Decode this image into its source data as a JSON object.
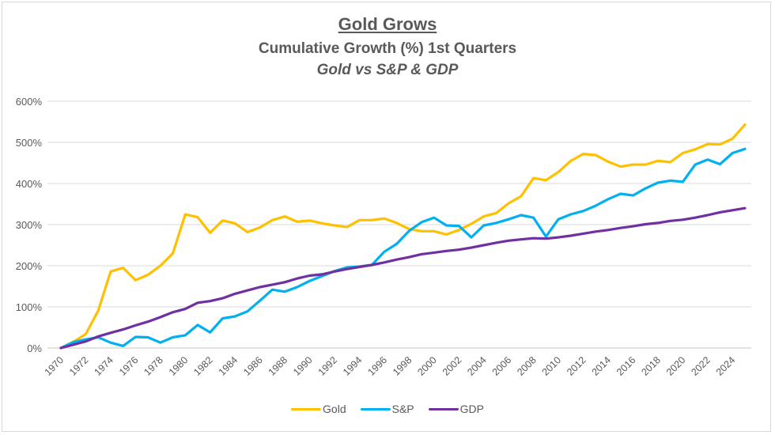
{
  "chart_data": {
    "type": "line",
    "title": "Gold Grows",
    "subtitle": "Cumulative Growth (%) 1st Quarters",
    "subtitle2": "Gold vs S&P & GDP",
    "xlabel": "",
    "ylabel": "",
    "ylim": [
      0,
      600
    ],
    "yticks": [
      "0%",
      "100%",
      "200%",
      "300%",
      "400%",
      "500%",
      "600%"
    ],
    "ytick_values": [
      0,
      100,
      200,
      300,
      400,
      500,
      600
    ],
    "x": [
      1970,
      1971,
      1972,
      1973,
      1974,
      1975,
      1976,
      1977,
      1978,
      1979,
      1980,
      1981,
      1982,
      1983,
      1984,
      1985,
      1986,
      1987,
      1988,
      1989,
      1990,
      1991,
      1992,
      1993,
      1994,
      1995,
      1996,
      1997,
      1998,
      1999,
      2000,
      2001,
      2002,
      2003,
      2004,
      2005,
      2006,
      2007,
      2008,
      2009,
      2010,
      2011,
      2012,
      2013,
      2014,
      2015,
      2016,
      2017,
      2018,
      2019,
      2020,
      2021,
      2022,
      2023,
      2024,
      2025
    ],
    "xtick_labels": [
      "1970",
      "1972",
      "1974",
      "1976",
      "1978",
      "1980",
      "1982",
      "1984",
      "1986",
      "1988",
      "1990",
      "1992",
      "1994",
      "1996",
      "1998",
      "2000",
      "2002",
      "2004",
      "2006",
      "2008",
      "2010",
      "2012",
      "2014",
      "2016",
      "2018",
      "2020",
      "2022",
      "2024"
    ],
    "grid": true,
    "legend_position": "bottom",
    "series": [
      {
        "name": "Gold",
        "color": "#FFC000",
        "values": [
          0,
          15,
          34,
          91,
          186,
          195,
          165,
          178,
          200,
          230,
          325,
          318,
          280,
          310,
          303,
          282,
          293,
          311,
          320,
          307,
          310,
          303,
          298,
          294,
          311,
          311,
          315,
          304,
          289,
          284,
          284,
          276,
          287,
          302,
          320,
          328,
          352,
          369,
          413,
          408,
          428,
          455,
          472,
          469,
          453,
          441,
          446,
          446,
          455,
          452,
          474,
          483,
          496,
          495,
          509,
          543
        ]
      },
      {
        "name": "S&P",
        "color": "#00B0F0",
        "values": [
          0,
          14,
          21,
          26,
          13,
          5,
          27,
          26,
          13,
          26,
          31,
          56,
          38,
          72,
          77,
          89,
          115,
          142,
          137,
          148,
          163,
          175,
          187,
          196,
          198,
          202,
          234,
          253,
          285,
          306,
          317,
          298,
          297,
          269,
          298,
          304,
          313,
          323,
          317,
          271,
          313,
          325,
          333,
          346,
          362,
          375,
          371,
          388,
          402,
          407,
          404,
          446,
          458,
          447,
          474,
          484
        ]
      },
      {
        "name": "GDP",
        "color": "#7030A0",
        "values": [
          0,
          8,
          16,
          28,
          37,
          45,
          55,
          64,
          75,
          87,
          95,
          110,
          114,
          121,
          132,
          140,
          148,
          154,
          160,
          169,
          176,
          179,
          186,
          192,
          197,
          202,
          208,
          215,
          221,
          228,
          232,
          236,
          239,
          244,
          250,
          256,
          261,
          264,
          267,
          266,
          269,
          273,
          278,
          283,
          287,
          292,
          296,
          301,
          304,
          309,
          312,
          317,
          323,
          330,
          335,
          340
        ]
      }
    ]
  }
}
